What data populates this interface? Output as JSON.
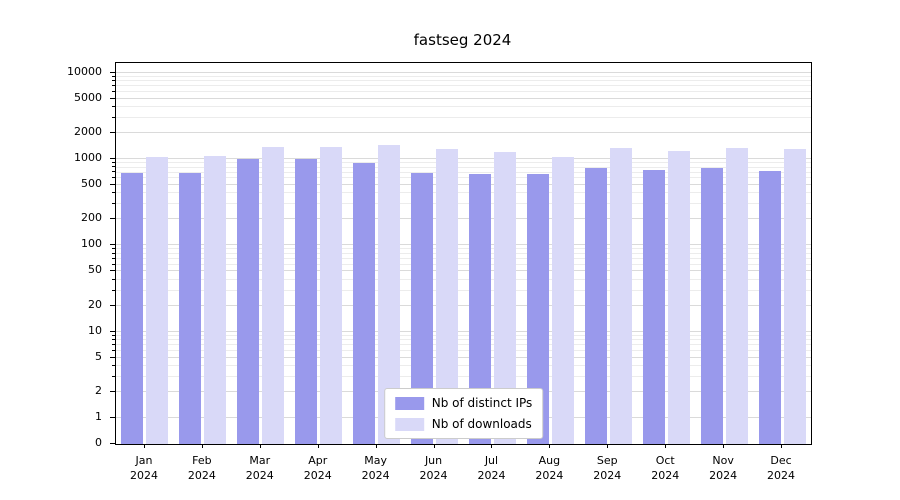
{
  "chart_data": {
    "type": "bar",
    "title": "fastseg 2024",
    "categories": [
      "Jan",
      "Feb",
      "Mar",
      "Apr",
      "May",
      "Jun",
      "Jul",
      "Aug",
      "Sep",
      "Oct",
      "Nov",
      "Dec"
    ],
    "category_year": "2024",
    "series": [
      {
        "name": "Nb of distinct IPs",
        "color": "#9999ec",
        "values": [
          700,
          700,
          1000,
          1000,
          900,
          700,
          680,
          670,
          780,
          740,
          790,
          720
        ]
      },
      {
        "name": "Nb of downloads",
        "color": "#d9d9f8",
        "values": [
          1050,
          1100,
          1400,
          1400,
          1450,
          1300,
          1200,
          1050,
          1350,
          1250,
          1350,
          1300
        ]
      }
    ],
    "yscale": "symlog",
    "yticks": [
      0,
      1,
      2,
      5,
      10,
      20,
      50,
      100,
      200,
      500,
      1000,
      2000,
      5000,
      10000
    ],
    "ylim": [
      0,
      13000
    ],
    "xlabel": "",
    "ylabel": "",
    "grid": true,
    "legend_position": "lower center"
  }
}
